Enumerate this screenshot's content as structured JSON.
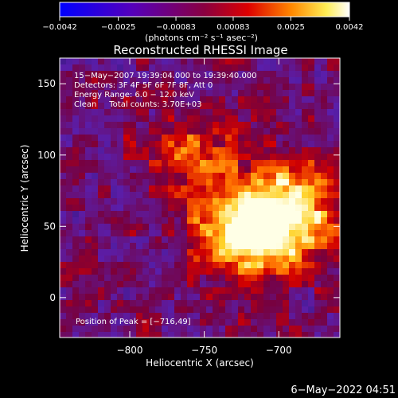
{
  "chart_data": {
    "type": "heatmap",
    "title": "Reconstructed RHESSI Image",
    "xlabel": "Heliocentric X (arcsec)",
    "ylabel": "Heliocentric Y (arcsec)",
    "xlim": [
      -847,
      -659
    ],
    "ylim": [
      -28,
      168
    ],
    "xticks": [
      -800,
      -750,
      -700
    ],
    "xtick_labels": [
      "−800",
      "−750",
      "−700"
    ],
    "yticks": [
      0,
      50,
      100,
      150
    ],
    "ytick_labels": [
      "0",
      "50",
      "100",
      "150"
    ],
    "colorbar": {
      "range": [
        -0.0042,
        0.0042
      ],
      "ticks": [
        -0.0042,
        -0.0025,
        -0.00083,
        0.00083,
        0.0025,
        0.0042
      ],
      "tick_labels": [
        "−0.0042",
        "−0.0025",
        "−0.00083",
        "0.00083",
        "0.0025",
        "0.0042"
      ],
      "units": "(photons cm⁻² s⁻¹ asec⁻²)",
      "colormap": "blue-purple-red-orange-yellow-white"
    },
    "annotations": [
      "15−May−2007 19:39:04.000 to 19:39:40.000",
      "Detectors: 3F 4F 5F 6F 7F 8F, Att 0",
      "Energy Range: 6.0 − 12.0 keV",
      "Clean     Total counts: 3.70E+03"
    ],
    "peak_label": "Position of Peak = [−716,49]",
    "peak": [
      -716,
      49
    ],
    "grid": false
  },
  "timestamp": "6−May−2022 04:51"
}
